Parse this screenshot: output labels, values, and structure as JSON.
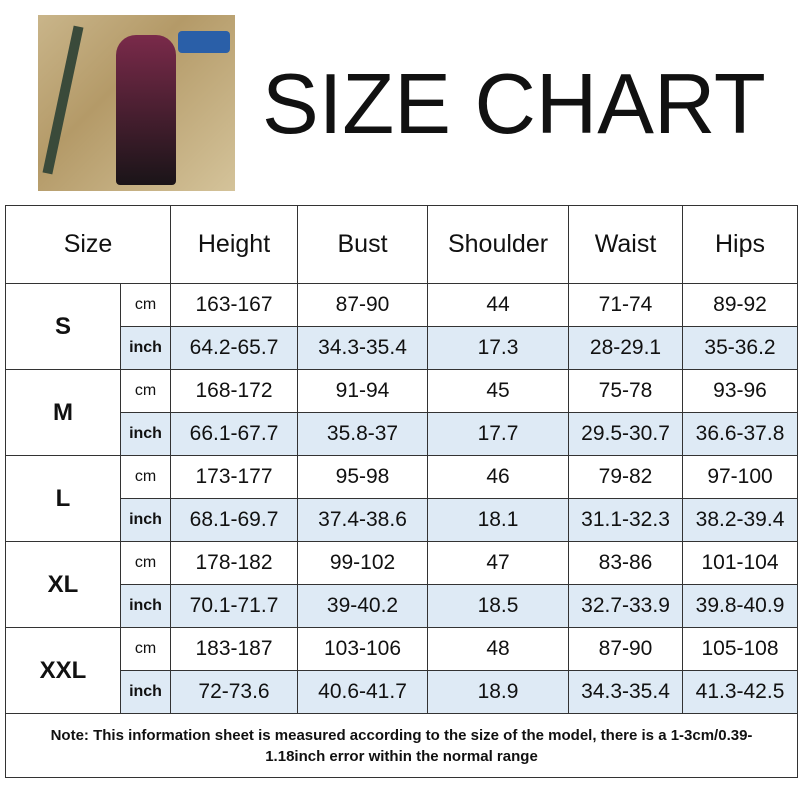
{
  "title": "SIZE CHART",
  "table": {
    "size_header": "Size",
    "columns": [
      "Height",
      "Bust",
      "Shoulder",
      "Waist",
      "Hips"
    ],
    "units": [
      "cm",
      "inch"
    ],
    "rows": [
      {
        "size": "S",
        "cm": [
          "163-167",
          "87-90",
          "44",
          "71-74",
          "89-92"
        ],
        "inch": [
          "64.2-65.7",
          "34.3-35.4",
          "17.3",
          "28-29.1",
          "35-36.2"
        ]
      },
      {
        "size": "M",
        "cm": [
          "168-172",
          "91-94",
          "45",
          "75-78",
          "93-96"
        ],
        "inch": [
          "66.1-67.7",
          "35.8-37",
          "17.7",
          "29.5-30.7",
          "36.6-37.8"
        ]
      },
      {
        "size": "L",
        "cm": [
          "173-177",
          "95-98",
          "46",
          "79-82",
          "97-100"
        ],
        "inch": [
          "68.1-69.7",
          "37.4-38.6",
          "18.1",
          "31.1-32.3",
          "38.2-39.4"
        ]
      },
      {
        "size": "XL",
        "cm": [
          "178-182",
          "99-102",
          "47",
          "83-86",
          "101-104"
        ],
        "inch": [
          "70.1-71.7",
          "39-40.2",
          "18.5",
          "32.7-33.9",
          "39.8-40.9"
        ]
      },
      {
        "size": "XXL",
        "cm": [
          "183-187",
          "103-106",
          "48",
          "87-90",
          "105-108"
        ],
        "inch": [
          "72-73.6",
          "40.6-41.7",
          "18.9",
          "34.3-35.4",
          "41.3-42.5"
        ]
      }
    ],
    "note": "Note: This information sheet is measured according to the size of the model, there is a 1-3cm/0.39-1.18inch error within the normal range"
  },
  "colors": {
    "inch_row_bg": "#deeaf5",
    "border": "#333333"
  }
}
